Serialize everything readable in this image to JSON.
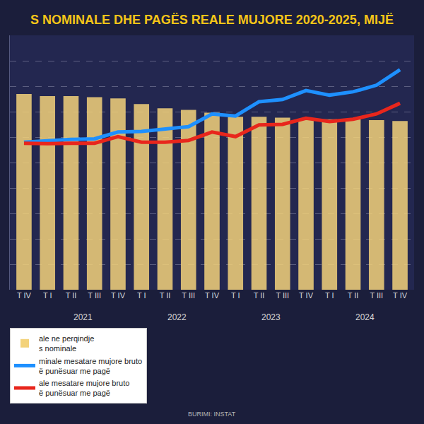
{
  "chart_data": {
    "type": "bar",
    "title": "S NOMINALE DHE PAGËS REALE MUJORE 2020-2025, MIJË",
    "categories": [
      "T IV",
      "T I",
      "T II",
      "T III",
      "T IV",
      "T I",
      "T II",
      "T III",
      "T IV",
      "T I",
      "T II",
      "T III",
      "T IV",
      "T I",
      "T II",
      "T III",
      "T IV"
    ],
    "x_groups": [
      {
        "label": "2021",
        "from": 1,
        "to": 4
      },
      {
        "label": "2022",
        "from": 5,
        "to": 8
      },
      {
        "label": "2023",
        "from": 9,
        "to": 12
      },
      {
        "label": "2024",
        "from": 13,
        "to": 16
      }
    ],
    "series": [
      {
        "name": "ale ne perqindje\ns nominale",
        "type": "bar",
        "color": "#f3d27a",
        "values": [
          100,
          98.9,
          98.9,
          98.4,
          97.8,
          94.9,
          92.7,
          91.9,
          90.5,
          88.4,
          88.4,
          87.9,
          87.1,
          87.1,
          87.1,
          86.7,
          86.2
        ]
      },
      {
        "name": "minale mesatare mujore bruto\në punësuar me pagë",
        "type": "line",
        "axis": "y2",
        "color": "#1e90ff",
        "values": [
          58.0,
          58.7,
          59.1,
          59.3,
          62.0,
          62.2,
          63.3,
          64.1,
          69.1,
          68.3,
          73.9,
          74.8,
          78.3,
          76.5,
          77.8,
          80.4,
          86.5
        ]
      },
      {
        "name": "ale mesatare mujore bruto\në punësuar me pagë",
        "type": "line",
        "axis": "y2",
        "color": "#e8261c",
        "values": [
          57.6,
          57.4,
          57.6,
          57.6,
          60.2,
          58.0,
          58.0,
          58.7,
          62.0,
          60.2,
          64.8,
          65.0,
          67.4,
          66.1,
          67.0,
          69.1,
          73.3
        ]
      }
    ],
    "ylim": [
      0,
      130
    ],
    "yticks": [],
    "y2lim": [
      0,
      100
    ],
    "y2ticks": [
      0,
      10,
      20,
      30,
      40,
      50,
      60,
      70,
      80,
      90,
      100
    ],
    "grid": true,
    "tick_labels": "x",
    "legend": "bottom",
    "source": "BURIMI: INSTAT"
  }
}
